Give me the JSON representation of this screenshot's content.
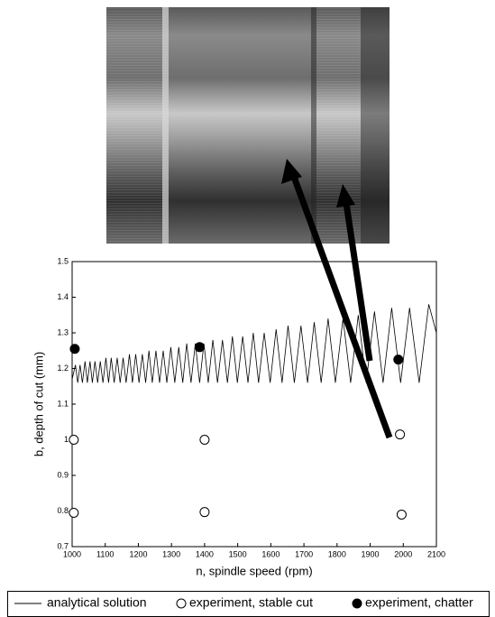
{
  "chart_data": {
    "type": "line",
    "xlabel": "n, spindle speed (rpm)",
    "ylabel": "b, depth of cut (mm)",
    "xlim": [
      1000,
      2100
    ],
    "ylim": [
      0.7,
      1.5
    ],
    "xticks": [
      1000,
      1100,
      1200,
      1300,
      1400,
      1500,
      1600,
      1700,
      1800,
      1900,
      2000,
      2100
    ],
    "yticks": [
      0.7,
      0.8,
      0.9,
      1,
      1.1,
      1.2,
      1.3,
      1.4,
      1.5
    ],
    "series": [
      {
        "name": "analytical solution",
        "mode": "line",
        "color": "#000000",
        "x": [
          1000,
          1010,
          1017,
          1024,
          1031,
          1039,
          1046,
          1054,
          1061,
          1069,
          1077,
          1085,
          1093,
          1102,
          1110,
          1118,
          1127,
          1136,
          1145,
          1154,
          1163,
          1173,
          1182,
          1192,
          1202,
          1212,
          1222,
          1232,
          1242,
          1253,
          1264,
          1275,
          1286,
          1298,
          1310,
          1322,
          1334,
          1346,
          1359,
          1372,
          1385,
          1398,
          1411,
          1425,
          1439,
          1454,
          1469,
          1484,
          1499,
          1515,
          1531,
          1547,
          1563,
          1580,
          1598,
          1616,
          1634,
          1652,
          1671,
          1691,
          1711,
          1731,
          1752,
          1773,
          1795,
          1818,
          1841,
          1864,
          1888,
          1913,
          1939,
          1965,
          1992,
          2019,
          2048,
          2077,
          2100
        ],
        "values": [
          1.17,
          1.21,
          1.16,
          1.21,
          1.16,
          1.22,
          1.16,
          1.22,
          1.16,
          1.22,
          1.16,
          1.22,
          1.16,
          1.23,
          1.16,
          1.23,
          1.16,
          1.23,
          1.16,
          1.23,
          1.16,
          1.24,
          1.16,
          1.24,
          1.16,
          1.24,
          1.16,
          1.25,
          1.16,
          1.25,
          1.16,
          1.25,
          1.16,
          1.26,
          1.16,
          1.26,
          1.16,
          1.27,
          1.16,
          1.27,
          1.16,
          1.27,
          1.16,
          1.28,
          1.16,
          1.28,
          1.16,
          1.29,
          1.16,
          1.29,
          1.16,
          1.3,
          1.16,
          1.3,
          1.16,
          1.31,
          1.16,
          1.32,
          1.16,
          1.32,
          1.16,
          1.33,
          1.16,
          1.34,
          1.16,
          1.34,
          1.16,
          1.35,
          1.16,
          1.36,
          1.16,
          1.37,
          1.16,
          1.37,
          1.16,
          1.38,
          1.3
        ]
      },
      {
        "name": "experiment, stable cut",
        "mode": "marker",
        "color": "#000000",
        "marker_fill": "#ffffff",
        "x": [
          1005,
          1400,
          1990,
          1005,
          1400,
          1995
        ],
        "values": [
          1.0,
          1.0,
          1.015,
          0.795,
          0.797,
          0.79
        ]
      },
      {
        "name": "experiment, chatter",
        "mode": "marker",
        "color": "#000000",
        "marker_fill": "#000000",
        "x": [
          1008,
          1385,
          1985
        ],
        "values": [
          1.255,
          1.26,
          1.225
        ]
      }
    ]
  }
}
